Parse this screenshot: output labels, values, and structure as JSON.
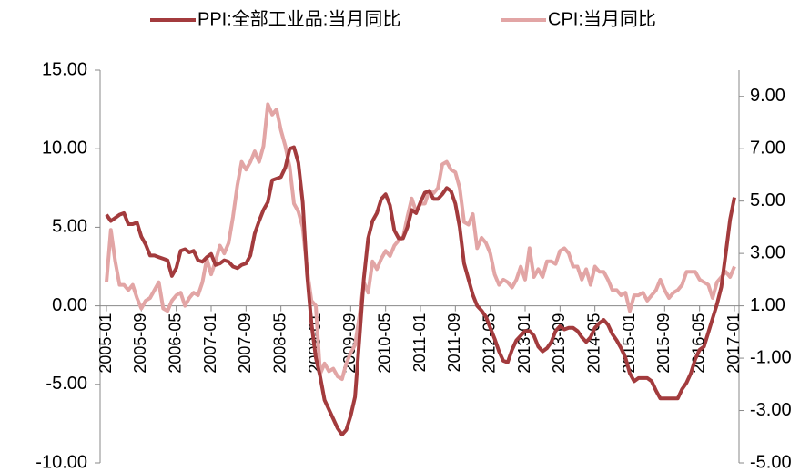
{
  "chart_data": {
    "type": "line",
    "categories": [
      "2005-01",
      null,
      null,
      null,
      null,
      null,
      null,
      null,
      "2005-09",
      null,
      null,
      null,
      null,
      null,
      null,
      null,
      "2006-05",
      null,
      null,
      null,
      null,
      null,
      null,
      null,
      "2007-01",
      null,
      null,
      null,
      null,
      null,
      null,
      null,
      "2007-09",
      null,
      null,
      null,
      null,
      null,
      null,
      null,
      "2008-05",
      null,
      null,
      null,
      null,
      null,
      null,
      null,
      "2009-01",
      null,
      null,
      null,
      null,
      null,
      null,
      null,
      "2009-09",
      null,
      null,
      null,
      null,
      null,
      null,
      null,
      "2010-05",
      null,
      null,
      null,
      null,
      null,
      null,
      null,
      "2011-01",
      null,
      null,
      null,
      null,
      null,
      null,
      null,
      "2011-09",
      null,
      null,
      null,
      null,
      null,
      null,
      null,
      "2012-05",
      null,
      null,
      null,
      null,
      null,
      null,
      null,
      "2013-01",
      null,
      null,
      null,
      null,
      null,
      null,
      null,
      "2013-09",
      null,
      null,
      null,
      null,
      null,
      null,
      null,
      "2014-05",
      null,
      null,
      null,
      null,
      null,
      null,
      null,
      "2015-01",
      null,
      null,
      null,
      null,
      null,
      null,
      null,
      "2015-09",
      null,
      null,
      null,
      null,
      null,
      null,
      null,
      "2016-05",
      null,
      null,
      null,
      null,
      null,
      null,
      null,
      "2017-01"
    ],
    "series": [
      {
        "name": "PPI:全部工业品:当月同比",
        "color": "#a33b3d",
        "values": [
          5.8,
          5.4,
          5.6,
          5.8,
          5.9,
          5.2,
          5.2,
          5.3,
          4.4,
          3.9,
          3.2,
          3.2,
          3.1,
          3.0,
          2.9,
          1.9,
          2.4,
          3.5,
          3.6,
          3.4,
          3.5,
          2.9,
          2.8,
          3.1,
          3.3,
          2.6,
          2.7,
          2.9,
          2.8,
          2.5,
          2.4,
          2.6,
          2.7,
          3.2,
          4.6,
          5.4,
          6.1,
          6.6,
          8.0,
          8.1,
          8.2,
          8.8,
          10.0,
          10.1,
          9.1,
          6.6,
          2.0,
          -1.1,
          -3.3,
          -4.5,
          -6.0,
          -6.6,
          -7.2,
          -7.8,
          -8.2,
          -7.9,
          -7.0,
          -5.8,
          -2.1,
          1.7,
          4.3,
          5.4,
          5.9,
          6.8,
          7.1,
          6.4,
          4.8,
          4.3,
          4.3,
          5.0,
          6.1,
          5.9,
          6.6,
          7.2,
          7.3,
          6.8,
          6.8,
          7.1,
          7.5,
          7.3,
          6.5,
          5.0,
          2.7,
          1.7,
          0.7,
          0.0,
          -0.3,
          -0.7,
          -1.4,
          -2.1,
          -2.9,
          -3.5,
          -3.6,
          -2.8,
          -2.2,
          -1.9,
          -1.6,
          -1.6,
          -1.9,
          -2.6,
          -2.9,
          -2.7,
          -2.3,
          -1.6,
          -1.3,
          -1.5,
          -1.4,
          -1.4,
          -1.6,
          -2.0,
          -2.3,
          -2.0,
          -1.4,
          -1.1,
          -0.9,
          -1.2,
          -1.8,
          -2.2,
          -2.7,
          -3.3,
          -4.3,
          -4.8,
          -4.6,
          -4.6,
          -4.6,
          -4.8,
          -5.4,
          -5.9,
          -5.9,
          -5.9,
          -5.9,
          -5.9,
          -5.3,
          -4.9,
          -4.3,
          -3.4,
          -2.8,
          -2.6,
          -1.7,
          -0.8,
          0.1,
          1.2,
          3.3,
          5.5,
          6.9
        ]
      },
      {
        "name": "CPI:当月同比",
        "color": "#e2a5a5",
        "axis": "y2",
        "values": [
          1.9,
          3.9,
          2.7,
          1.8,
          1.8,
          1.6,
          1.8,
          1.3,
          0.9,
          1.2,
          1.3,
          1.6,
          1.9,
          0.9,
          0.8,
          1.2,
          1.4,
          1.5,
          1.0,
          1.3,
          1.5,
          1.4,
          1.9,
          2.8,
          2.2,
          2.7,
          3.3,
          3.0,
          3.4,
          4.4,
          5.6,
          6.5,
          6.2,
          6.5,
          6.9,
          6.5,
          7.1,
          8.7,
          8.3,
          8.5,
          7.7,
          7.1,
          6.3,
          4.9,
          4.6,
          4.0,
          2.4,
          1.2,
          1.0,
          -1.6,
          -1.2,
          -1.5,
          -1.4,
          -1.7,
          -1.8,
          -1.2,
          -0.8,
          -0.5,
          0.6,
          1.9,
          1.5,
          2.7,
          2.4,
          2.8,
          3.1,
          2.9,
          3.3,
          3.5,
          3.6,
          4.4,
          5.1,
          4.6,
          4.9,
          4.9,
          5.4,
          5.3,
          5.5,
          6.4,
          6.5,
          6.2,
          6.1,
          5.5,
          4.2,
          4.1,
          4.5,
          3.2,
          3.6,
          3.4,
          3.0,
          2.2,
          1.8,
          2.0,
          1.9,
          1.7,
          2.0,
          2.5,
          2.0,
          3.2,
          2.1,
          2.4,
          2.1,
          2.7,
          2.7,
          2.6,
          3.1,
          3.2,
          3.0,
          2.5,
          2.5,
          2.0,
          2.4,
          1.8,
          2.5,
          2.3,
          2.3,
          2.0,
          1.6,
          1.6,
          1.4,
          1.5,
          0.8,
          1.4,
          1.4,
          1.5,
          1.2,
          1.4,
          1.6,
          2.0,
          1.6,
          1.3,
          1.5,
          1.6,
          1.8,
          2.3,
          2.3,
          2.3,
          2.0,
          1.9,
          1.8,
          1.3,
          1.9,
          2.1,
          2.3,
          2.1,
          2.5
        ]
      }
    ],
    "ylim": [
      -10,
      15
    ],
    "yticks": [
      {
        "value": 15,
        "label": "15.00"
      },
      {
        "value": 10,
        "label": "10.00"
      },
      {
        "value": 5,
        "label": "5.00"
      },
      {
        "value": 0,
        "label": "0.00"
      },
      {
        "value": -5,
        "label": "-5.00"
      },
      {
        "value": -10,
        "label": "-10.00"
      }
    ],
    "y2lim": [
      -5,
      10
    ],
    "y2ticks": [
      {
        "value": 9,
        "label": "9.00"
      },
      {
        "value": 7,
        "label": "7.00"
      },
      {
        "value": 5,
        "label": "5.00"
      },
      {
        "value": 3,
        "label": "3.00"
      },
      {
        "value": 1,
        "label": "1.00"
      },
      {
        "value": -1,
        "label": "-1.00"
      },
      {
        "value": -3,
        "label": "-3.00"
      },
      {
        "value": -5,
        "label": "-5.00"
      }
    ],
    "legend": "top"
  }
}
